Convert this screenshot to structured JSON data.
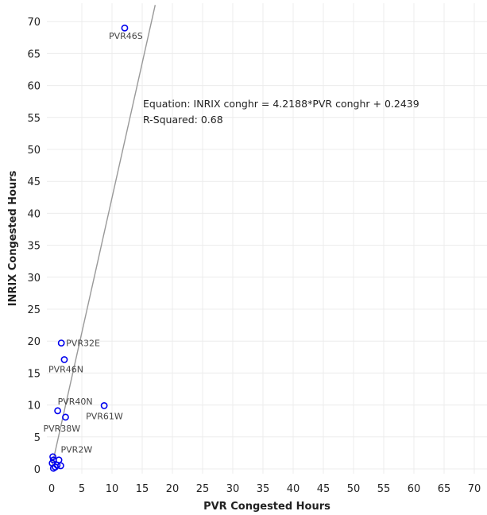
{
  "chart_data": {
    "type": "scatter",
    "title": "",
    "xlabel": "PVR Congested Hours",
    "ylabel": "INRIX Congested Hours",
    "xlim": [
      0,
      70
    ],
    "ylim": [
      0,
      72
    ],
    "xticks": [
      0,
      5,
      10,
      15,
      20,
      25,
      30,
      35,
      40,
      45,
      50,
      55,
      60,
      65,
      70
    ],
    "yticks": [
      0,
      5,
      10,
      15,
      20,
      25,
      30,
      35,
      40,
      45,
      50,
      55,
      60,
      65,
      70
    ],
    "grid": true,
    "marker_color": "#0000ee",
    "trend_color": "#999999",
    "trendline": {
      "slope": 4.2188,
      "intercept": 0.2439
    },
    "annotation": [
      "Equation: INRIX conghr = 4.2188*PVR conghr + 0.2439",
      "R-Squared: 0.68"
    ],
    "points": [
      {
        "x": 12.1,
        "y": 69.0,
        "label": "PVR46S"
      },
      {
        "x": 1.6,
        "y": 19.7,
        "label": "PVR32E"
      },
      {
        "x": 2.1,
        "y": 17.1,
        "label": "PVR46N"
      },
      {
        "x": 8.7,
        "y": 9.9,
        "label": "PVR61W"
      },
      {
        "x": 1.0,
        "y": 9.1,
        "label": "PVR40N"
      },
      {
        "x": 2.3,
        "y": 8.1,
        "label": "PVR38W"
      },
      {
        "x": 0.2,
        "y": 1.9,
        "label": "PVR2W"
      },
      {
        "x": 0.3,
        "y": 1.4,
        "label": ""
      },
      {
        "x": 0.1,
        "y": 0.9,
        "label": ""
      },
      {
        "x": 1.2,
        "y": 1.4,
        "label": ""
      },
      {
        "x": 1.5,
        "y": 0.5,
        "label": ""
      },
      {
        "x": 0.6,
        "y": 0.3,
        "label": ""
      },
      {
        "x": 0.3,
        "y": 0.1,
        "label": ""
      },
      {
        "x": 0.9,
        "y": 0.6,
        "label": ""
      }
    ]
  }
}
